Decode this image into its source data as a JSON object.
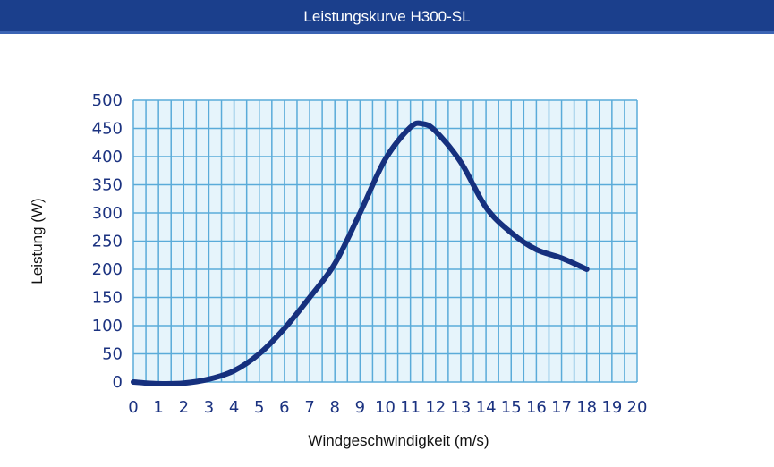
{
  "header": {
    "title": "Leistungskurve H300-SL"
  },
  "chart_data": {
    "type": "line",
    "title": "Leistungskurve H300-SL",
    "xlabel": "Windgeschwindigkeit (m/s)",
    "ylabel": "Leistung (W)",
    "xlim": [
      0,
      20
    ],
    "ylim": [
      0,
      500
    ],
    "xticks": [
      0,
      1,
      2,
      3,
      4,
      5,
      6,
      7,
      8,
      9,
      10,
      11,
      12,
      13,
      14,
      15,
      16,
      17,
      18,
      19,
      20
    ],
    "yticks": [
      0,
      50,
      100,
      150,
      200,
      250,
      300,
      350,
      400,
      450,
      500
    ],
    "grid": true,
    "grid_color": "#5aabd9",
    "plot_background": "#e6f4fb",
    "series": [
      {
        "color": "#16307e",
        "x": [
          0,
          1,
          2,
          3,
          4,
          5,
          6,
          7,
          8,
          9,
          10,
          11,
          11.5,
          12,
          13,
          14,
          15,
          16,
          17,
          18
        ],
        "y": [
          0,
          -3,
          -2,
          5,
          20,
          50,
          95,
          150,
          210,
          300,
          395,
          452,
          458,
          445,
          390,
          310,
          265,
          235,
          220,
          200
        ]
      }
    ]
  }
}
